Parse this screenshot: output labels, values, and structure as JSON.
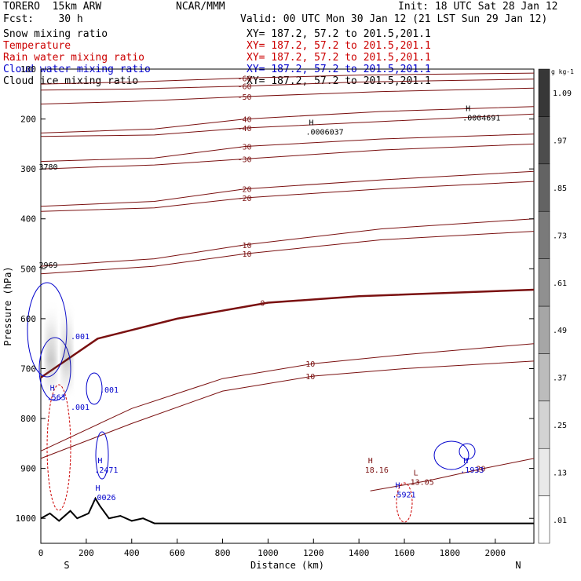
{
  "header": {
    "model": "TORERO  15km ARW",
    "source": "NCAR/MMM",
    "init": "Init: 18 UTC Sat 28 Jan 12",
    "fcst": "Fcst:    30 h",
    "valid": "Valid: 00 UTC Mon 30 Jan 12 (21 LST Sun 29 Jan 12)"
  },
  "fields": [
    {
      "name": "Snow mixing ratio",
      "xy": "XY= 187.2, 57.2 to 201.5,201.1",
      "color": "#000000"
    },
    {
      "name": "Temperature",
      "xy": "XY= 187.2, 57.2 to 201.5,201.1",
      "color": "#cc0000"
    },
    {
      "name": "Rain water mixing ratio",
      "xy": "XY= 187.2, 57.2 to 201.5,201.1",
      "color": "#cc0000"
    },
    {
      "name": "Cloud water mixing ratio",
      "xy": "XY= 187.2, 57.2 to 201.5,201.1",
      "color": "#0000cc"
    },
    {
      "name": "Cloud ice mixing ratio",
      "xy": "XY= 187.2, 57.2 to 201.5,201.1",
      "color": "#000000"
    }
  ],
  "chart_data": {
    "type": "line",
    "xlabel": "Distance (km)",
    "ylabel": "Pressure (hPa)",
    "xlim": [
      0,
      2170
    ],
    "ylim": [
      1050,
      100
    ],
    "x_ticks": [
      0,
      200,
      400,
      600,
      800,
      1000,
      1200,
      1400,
      1600,
      1800,
      2000
    ],
    "y_ticks": [
      100,
      200,
      300,
      400,
      500,
      600,
      700,
      800,
      900,
      1000
    ],
    "endpoints": {
      "left": "S",
      "right": "N"
    },
    "colorbar": {
      "unit": "g kg-1",
      "ticks": [
        ".01",
        ".13",
        ".25",
        ".37",
        ".49",
        ".61",
        ".73",
        ".85",
        ".97",
        "1.09"
      ]
    },
    "temperature_contours_degC": [
      {
        "label": "-60",
        "points": [
          [
            0,
            130
          ],
          [
            400,
            126
          ],
          [
            900,
            118
          ],
          [
            1400,
            112
          ],
          [
            2170,
            108
          ]
        ]
      },
      {
        "label": "-60",
        "points": [
          [
            0,
            142
          ],
          [
            400,
            140
          ],
          [
            900,
            134
          ],
          [
            1400,
            126
          ],
          [
            2170,
            120
          ]
        ]
      },
      {
        "label": "-50",
        "points": [
          [
            0,
            170
          ],
          [
            400,
            165
          ],
          [
            900,
            155
          ],
          [
            1500,
            145
          ],
          [
            2170,
            138
          ]
        ]
      },
      {
        "label": "-40",
        "points": [
          [
            0,
            228
          ],
          [
            500,
            220
          ],
          [
            900,
            200
          ],
          [
            1500,
            185
          ],
          [
            2170,
            175
          ]
        ]
      },
      {
        "label": "-40",
        "points": [
          [
            0,
            235
          ],
          [
            500,
            232
          ],
          [
            900,
            218
          ],
          [
            1500,
            205
          ],
          [
            2170,
            190
          ]
        ]
      },
      {
        "label": "-30",
        "points": [
          [
            0,
            285
          ],
          [
            500,
            278
          ],
          [
            900,
            255
          ],
          [
            1500,
            240
          ],
          [
            2170,
            230
          ]
        ]
      },
      {
        "label": "-30",
        "points": [
          [
            0,
            300
          ],
          [
            500,
            292
          ],
          [
            900,
            280
          ],
          [
            1500,
            262
          ],
          [
            2170,
            250
          ]
        ]
      },
      {
        "label": "-20",
        "points": [
          [
            0,
            375
          ],
          [
            500,
            365
          ],
          [
            900,
            340
          ],
          [
            1500,
            322
          ],
          [
            2170,
            305
          ]
        ]
      },
      {
        "label": "-20",
        "points": [
          [
            0,
            385
          ],
          [
            500,
            378
          ],
          [
            900,
            358
          ],
          [
            1500,
            340
          ],
          [
            2170,
            325
          ]
        ]
      },
      {
        "label": "-10",
        "points": [
          [
            0,
            495
          ],
          [
            500,
            480
          ],
          [
            900,
            452
          ],
          [
            1500,
            420
          ],
          [
            2170,
            400
          ]
        ]
      },
      {
        "label": "-10",
        "points": [
          [
            0,
            510
          ],
          [
            500,
            495
          ],
          [
            900,
            470
          ],
          [
            1500,
            442
          ],
          [
            2170,
            425
          ]
        ]
      },
      {
        "label": "0",
        "points": [
          [
            0,
            718
          ],
          [
            250,
            640
          ],
          [
            600,
            600
          ],
          [
            1000,
            568
          ],
          [
            1400,
            555
          ],
          [
            2170,
            542
          ]
        ],
        "bold": true
      },
      {
        "label": "10",
        "points": [
          [
            0,
            865
          ],
          [
            400,
            780
          ],
          [
            800,
            720
          ],
          [
            1200,
            690
          ],
          [
            1600,
            672
          ],
          [
            2170,
            650
          ]
        ]
      },
      {
        "label": "10",
        "points": [
          [
            0,
            880
          ],
          [
            400,
            810
          ],
          [
            800,
            745
          ],
          [
            1200,
            715
          ],
          [
            1600,
            700
          ],
          [
            2170,
            685
          ]
        ]
      },
      {
        "label": "20",
        "points": [
          [
            1450,
            945
          ],
          [
            1700,
            925
          ],
          [
            1950,
            900
          ],
          [
            2170,
            880
          ]
        ]
      }
    ],
    "markers": [
      {
        "type": "H",
        "value": ".0006037",
        "x": 1180,
        "p": 228
      },
      {
        "type": "H",
        "value": ".0004691",
        "x": 1870,
        "p": 200
      },
      {
        "type": "H",
        "value": "18.16",
        "x": 1440,
        "p": 905
      },
      {
        "type": "L",
        "value": "13.05",
        "x": 1640,
        "p": 930
      },
      {
        "type": "H",
        "value": ".1933",
        "x": 1860,
        "p": 905
      },
      {
        "type": "H",
        "value": ".5921",
        "x": 1560,
        "p": 955
      },
      {
        "type": "H",
        "value": ".2471",
        "x": 250,
        "p": 905
      },
      {
        "type": "H",
        "value": ".0026",
        "x": 240,
        "p": 960
      },
      {
        "type": "H",
        "value": ".563",
        "x": 40,
        "p": 760
      },
      {
        "type": "",
        "value": "3780",
        "x": 5,
        "p": 298
      },
      {
        "type": "",
        "value": "2969",
        "x": 5,
        "p": 495
      }
    ],
    "cloud_water_labels": [
      ".001",
      ".001",
      ".001"
    ],
    "terrain_hPa": [
      [
        0,
        1000
      ],
      [
        40,
        990
      ],
      [
        80,
        1005
      ],
      [
        130,
        985
      ],
      [
        160,
        1000
      ],
      [
        210,
        990
      ],
      [
        240,
        960
      ],
      [
        260,
        975
      ],
      [
        300,
        1000
      ],
      [
        350,
        995
      ],
      [
        400,
        1005
      ],
      [
        450,
        1000
      ],
      [
        500,
        1010
      ],
      [
        2170,
        1010
      ]
    ]
  }
}
